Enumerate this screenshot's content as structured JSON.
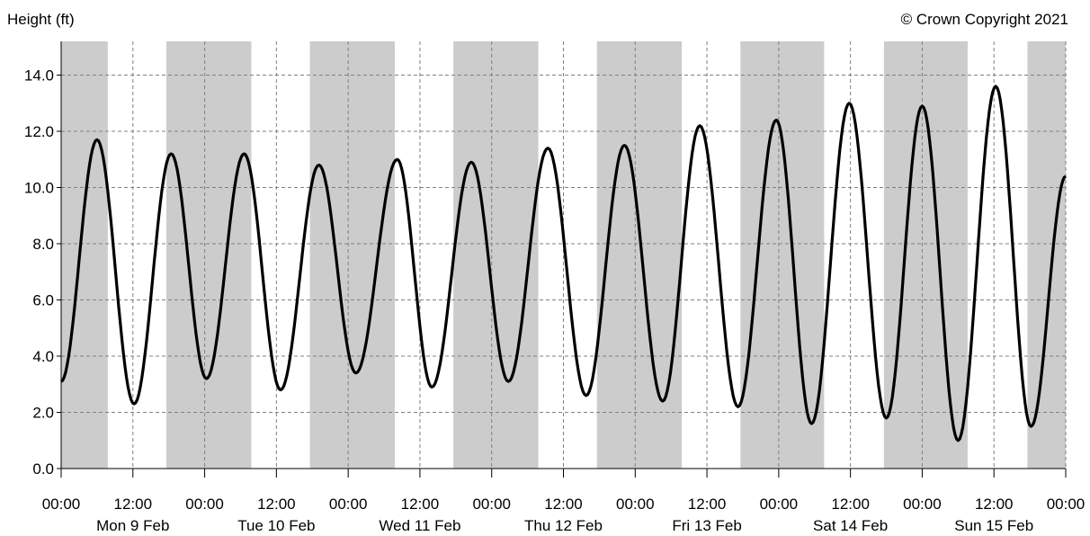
{
  "chart_data": {
    "type": "line",
    "title": "",
    "ylabel": "Height (ft)",
    "xlabel": "",
    "copyright": "© Crown Copyright 2021",
    "ylim": [
      0,
      15.2
    ],
    "xlim_hours": [
      0,
      168
    ],
    "grid": true,
    "y_ticks": [
      0,
      2,
      4,
      6,
      8,
      10,
      12,
      14
    ],
    "y_tick_labels": [
      "0.0",
      "2.0",
      "4.0",
      "6.0",
      "8.0",
      "10.0",
      "12.0",
      "14.0"
    ],
    "x_tick_labels": [
      "00:00",
      "12:00",
      "00:00",
      "12:00",
      "00:00",
      "12:00",
      "00:00",
      "12:00",
      "00:00",
      "12:00",
      "00:00",
      "12:00",
      "00:00",
      "12:00",
      "00:00"
    ],
    "day_labels": [
      "Mon 9 Feb",
      "Tue 10 Feb",
      "Wed 11 Feb",
      "Thu 12 Feb",
      "Fri 13 Feb",
      "Sat 14 Feb",
      "Sun 15 Feb"
    ],
    "night_bands_hours": [
      [
        0,
        7.8
      ],
      [
        17.6,
        31.8
      ],
      [
        41.6,
        55.8
      ],
      [
        65.6,
        79.8
      ],
      [
        89.6,
        103.8
      ],
      [
        113.6,
        127.6
      ],
      [
        137.6,
        151.6
      ],
      [
        161.6,
        168
      ]
    ],
    "colors": {
      "line": "#000000",
      "night_band": "#cccccc",
      "grid": "#808080",
      "background": "#ffffff"
    },
    "series": [
      {
        "values": [
          [
            0,
            3.1
          ],
          [
            6.0,
            11.7
          ],
          [
            12.2,
            2.3
          ],
          [
            18.4,
            11.2
          ],
          [
            24.3,
            3.2
          ],
          [
            30.6,
            11.2
          ],
          [
            36.7,
            2.8
          ],
          [
            43.1,
            10.8
          ],
          [
            49.3,
            3.4
          ],
          [
            56.2,
            11.0
          ],
          [
            62.0,
            2.9
          ],
          [
            68.6,
            10.9
          ],
          [
            74.8,
            3.1
          ],
          [
            81.4,
            11.4
          ],
          [
            87.8,
            2.6
          ],
          [
            94.2,
            11.5
          ],
          [
            100.6,
            2.4
          ],
          [
            106.8,
            12.2
          ],
          [
            113.2,
            2.2
          ],
          [
            119.6,
            12.4
          ],
          [
            125.5,
            1.6
          ],
          [
            131.8,
            13.0
          ],
          [
            138.0,
            1.8
          ],
          [
            144.0,
            12.9
          ],
          [
            150.0,
            1.0
          ],
          [
            156.3,
            13.6
          ],
          [
            162.2,
            1.5
          ],
          [
            168,
            10.4
          ]
        ]
      }
    ]
  }
}
